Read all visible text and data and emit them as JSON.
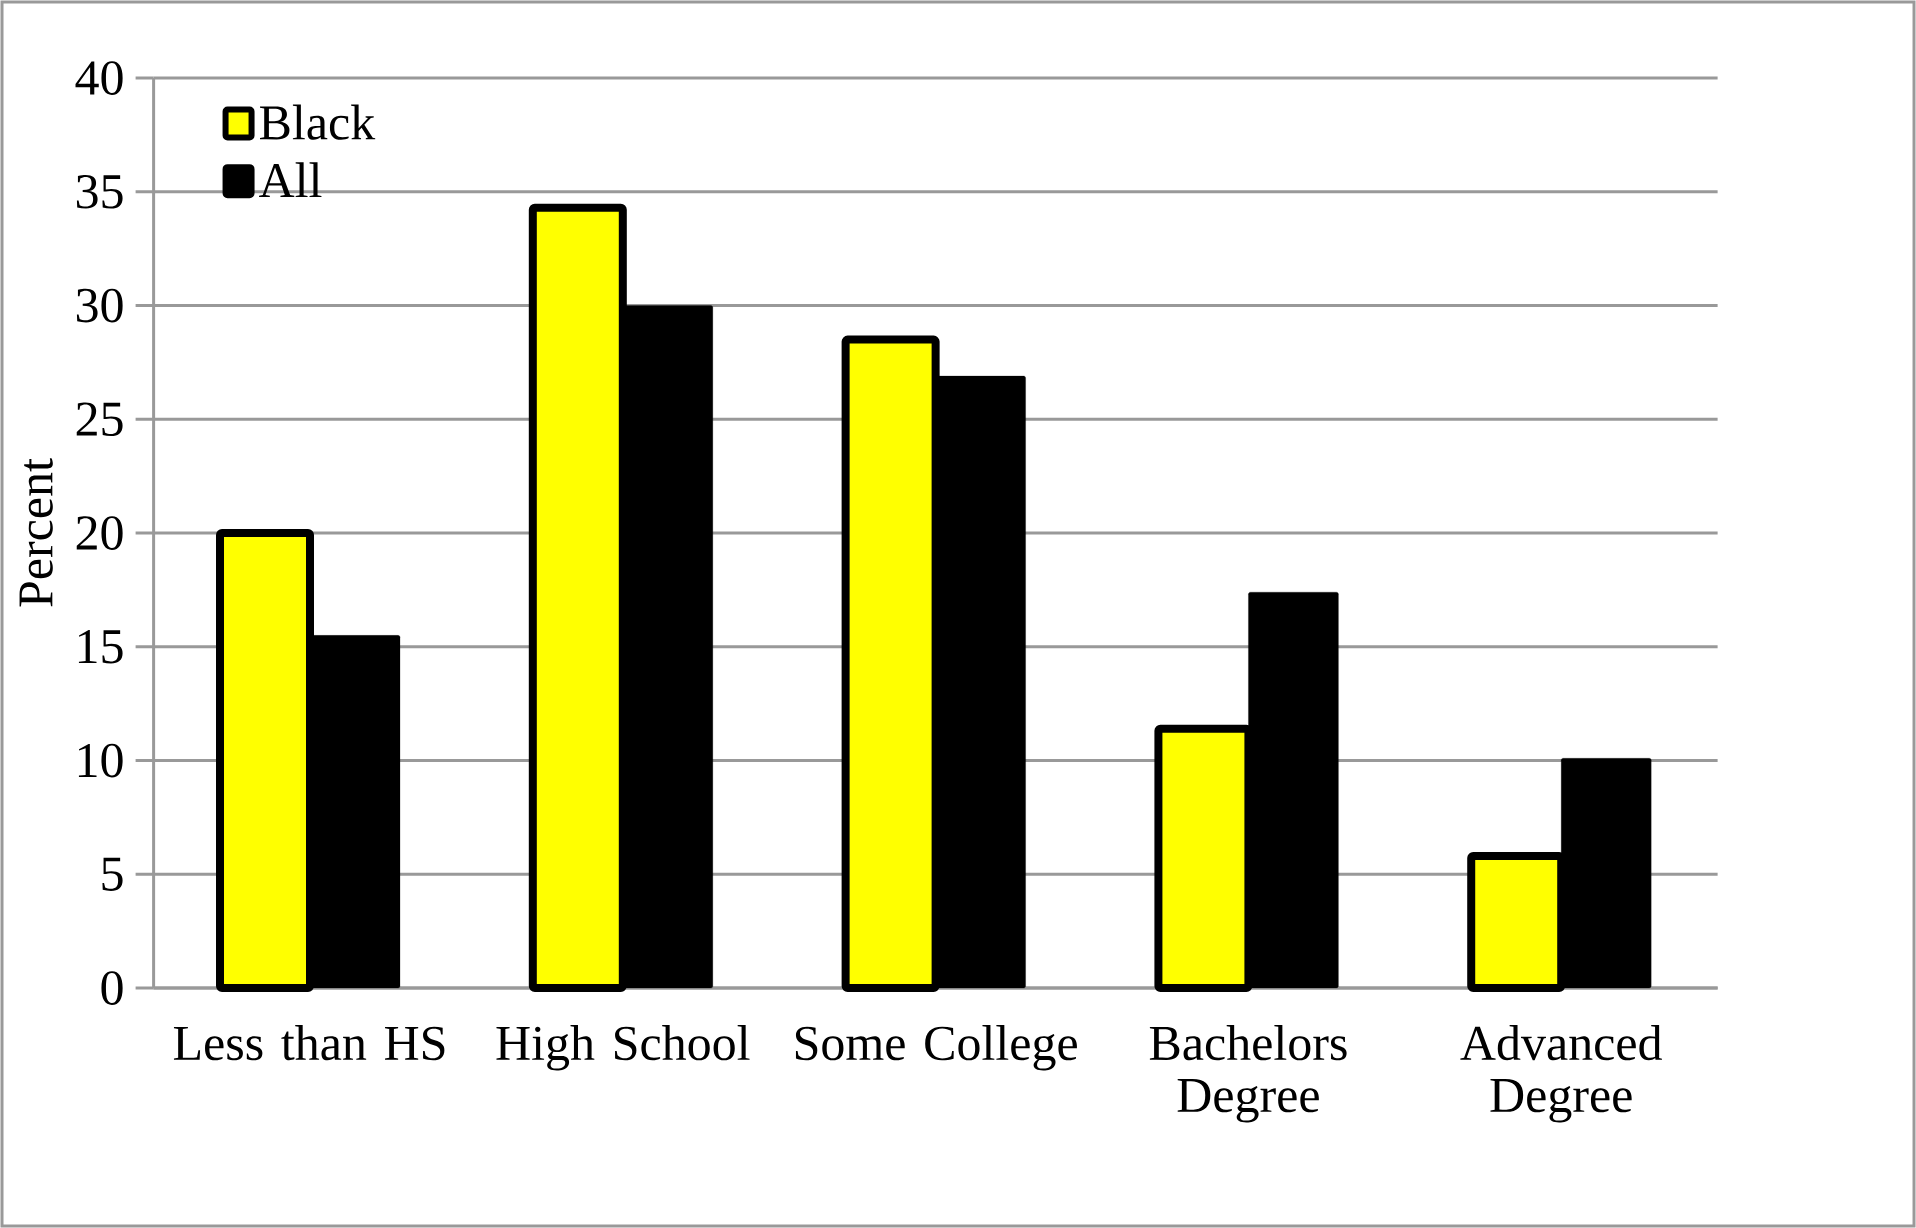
{
  "chart_data": {
    "type": "bar",
    "ylabel": "Percent",
    "categories": [
      "Less than HS",
      "High School",
      "Some College",
      "Bachelors Degree",
      "Advanced Degree"
    ],
    "series": [
      {
        "name": "Black",
        "color": "#ffff00",
        "values": [
          20.0,
          34.3,
          28.5,
          11.4,
          5.8
        ]
      },
      {
        "name": "All",
        "color": "#000000",
        "values": [
          15.5,
          30.0,
          26.9,
          17.4,
          10.1
        ]
      }
    ],
    "ylim": [
      0,
      40
    ],
    "yticks": [
      0,
      5,
      10,
      15,
      20,
      25,
      30,
      35,
      40
    ],
    "grid": "y",
    "legend": "top left"
  }
}
